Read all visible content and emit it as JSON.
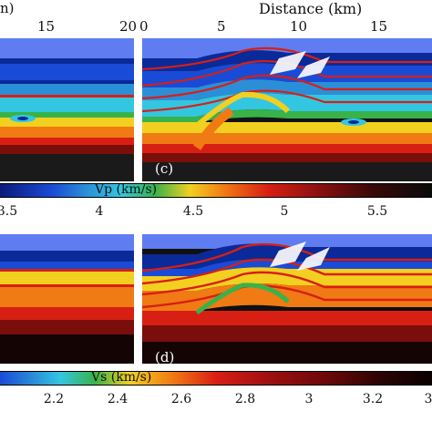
{
  "top_axis": {
    "left_panel_ticks": [
      "n)",
      "15",
      "20"
    ],
    "right_panel_ticks": [
      "0",
      "5",
      "10",
      "15"
    ],
    "title": "Distance (km)"
  },
  "panel_c": {
    "label": "(c)"
  },
  "panel_d": {
    "label": "(d)"
  },
  "colorbar_vp": {
    "title": "Vp (km/s)",
    "ticks": [
      "3.5",
      "4",
      "4.5",
      "5",
      "5.5"
    ]
  },
  "colorbar_vs": {
    "title": "Vs (km/s)",
    "ticks": [
      "2.2",
      "2.4",
      "2.6",
      "2.8",
      "3",
      "3.2",
      "3"
    ]
  },
  "colors": {
    "deep_blue": "#0a2a9a",
    "blue": "#1a4bd6",
    "cyan": "#33c6e0",
    "green": "#39b24a",
    "yellow": "#f2d020",
    "orange": "#f07a14",
    "red": "#d81f14",
    "dark_red": "#7a0e0a",
    "black": "#101010"
  }
}
